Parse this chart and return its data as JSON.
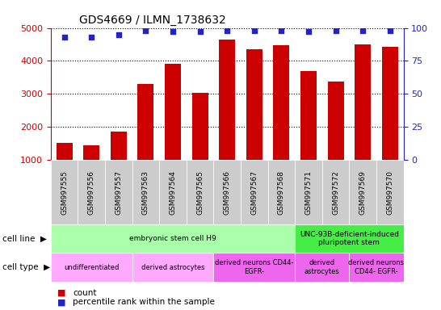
{
  "title": "GDS4669 / ILMN_1738632",
  "samples": [
    "GSM997555",
    "GSM997556",
    "GSM997557",
    "GSM997563",
    "GSM997564",
    "GSM997565",
    "GSM997566",
    "GSM997567",
    "GSM997568",
    "GSM997571",
    "GSM997572",
    "GSM997569",
    "GSM997570"
  ],
  "counts": [
    1510,
    1430,
    1840,
    3310,
    3920,
    3040,
    4640,
    4340,
    4480,
    3680,
    3360,
    4510,
    4430
  ],
  "percentiles": [
    93,
    93,
    95,
    98,
    97,
    97,
    98,
    98,
    98,
    97,
    98,
    98,
    98
  ],
  "bar_color": "#cc0000",
  "dot_color": "#2222cc",
  "ylim_left": [
    1000,
    5000
  ],
  "ylim_right": [
    0,
    100
  ],
  "yticks_left": [
    1000,
    2000,
    3000,
    4000,
    5000
  ],
  "yticks_right": [
    0,
    25,
    50,
    75,
    100
  ],
  "cell_line_segments": [
    {
      "text": "embryonic stem cell H9",
      "start": 0,
      "end": 8,
      "color": "#aaffaa"
    },
    {
      "text": "UNC-93B-deficient-induced\npluripotent stem",
      "start": 9,
      "end": 12,
      "color": "#44ee44"
    }
  ],
  "cell_type_segments": [
    {
      "text": "undifferentiated",
      "start": 0,
      "end": 2,
      "color": "#ffaaff"
    },
    {
      "text": "derived astrocytes",
      "start": 3,
      "end": 5,
      "color": "#ffaaff"
    },
    {
      "text": "derived neurons CD44-\nEGFR-",
      "start": 6,
      "end": 8,
      "color": "#ee66ee"
    },
    {
      "text": "derived\nastrocytes",
      "start": 9,
      "end": 10,
      "color": "#ee66ee"
    },
    {
      "text": "derived neurons\nCD44- EGFR-",
      "start": 11,
      "end": 12,
      "color": "#ee66ee"
    }
  ],
  "tick_bg_color": "#cccccc",
  "tick_color_left": "#cc0000",
  "tick_color_right": "#2222cc",
  "background_color": "#ffffff",
  "legend_count_color": "#cc0000",
  "legend_percentile_color": "#2222cc"
}
